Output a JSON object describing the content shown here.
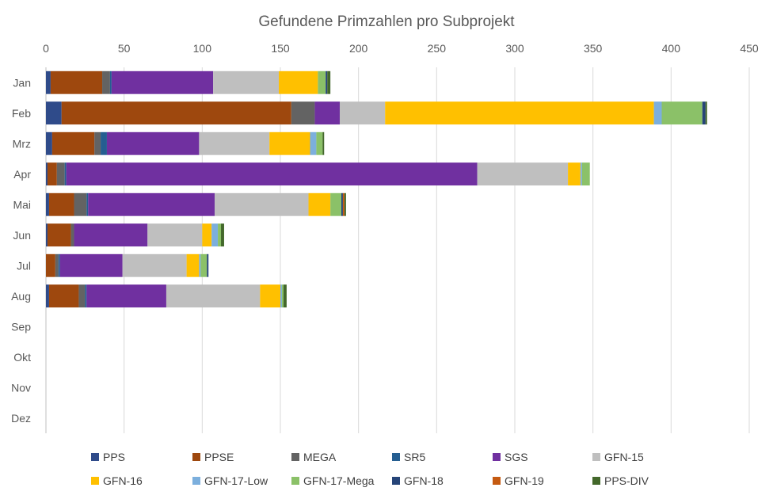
{
  "chart_data": {
    "type": "bar",
    "orientation": "horizontal",
    "stacked": true,
    "title": "Gefundene Primzahlen pro Subprojekt",
    "xlabel": "",
    "ylabel": "",
    "xlim": [
      0,
      450
    ],
    "x_ticks": [
      0,
      50,
      100,
      150,
      200,
      250,
      300,
      350,
      400,
      450
    ],
    "x_axis_position": "top",
    "grid": true,
    "legend_position": "bottom",
    "categories": [
      "Jan",
      "Feb",
      "Mrz",
      "Apr",
      "Mai",
      "Jun",
      "Jul",
      "Aug",
      "Sep",
      "Okt",
      "Nov",
      "Dez"
    ],
    "series": [
      {
        "name": "PPS",
        "color": "#2f4b8a",
        "values": [
          3,
          10,
          4,
          1,
          2,
          1,
          0,
          2,
          0,
          0,
          0,
          0
        ]
      },
      {
        "name": "PPSE",
        "color": "#9e480e",
        "values": [
          33,
          147,
          27,
          6,
          16,
          15,
          6,
          19,
          0,
          0,
          0,
          0
        ]
      },
      {
        "name": "MEGA",
        "color": "#636363",
        "values": [
          5,
          15,
          4,
          5,
          8,
          2,
          2,
          4,
          0,
          0,
          0,
          0
        ]
      },
      {
        "name": "SR5",
        "color": "#255e91",
        "values": [
          1,
          0,
          4,
          1,
          1,
          0,
          1,
          1,
          0,
          0,
          0,
          0
        ]
      },
      {
        "name": "SGS",
        "color": "#7030a0",
        "values": [
          65,
          16,
          59,
          263,
          81,
          47,
          40,
          51,
          0,
          0,
          0,
          0
        ]
      },
      {
        "name": "GFN-15",
        "color": "#bfbfbf",
        "values": [
          42,
          29,
          45,
          58,
          60,
          35,
          41,
          60,
          0,
          0,
          0,
          0
        ]
      },
      {
        "name": "GFN-16",
        "color": "#ffc000",
        "values": [
          25,
          172,
          26,
          8,
          14,
          6,
          8,
          13,
          0,
          0,
          0,
          0
        ]
      },
      {
        "name": "GFN-17-Low",
        "color": "#7cafdd",
        "values": [
          0,
          5,
          4,
          1,
          0,
          4,
          1,
          1,
          0,
          0,
          0,
          0
        ]
      },
      {
        "name": "GFN-17-Mega",
        "color": "#8bc168",
        "values": [
          5,
          26,
          4,
          5,
          7,
          2,
          4,
          1,
          0,
          0,
          0,
          0
        ]
      },
      {
        "name": "GFN-18",
        "color": "#264478",
        "values": [
          1,
          2,
          0,
          0,
          1,
          0,
          1,
          0,
          0,
          0,
          0,
          0
        ]
      },
      {
        "name": "GFN-19",
        "color": "#c55a11",
        "values": [
          0,
          0,
          0,
          0,
          1,
          0,
          0,
          0,
          0,
          0,
          0,
          0
        ]
      },
      {
        "name": "PPS-DIV",
        "color": "#43682b",
        "values": [
          2,
          1,
          1,
          0,
          1,
          2,
          0,
          2,
          0,
          0,
          0,
          0
        ]
      }
    ]
  }
}
